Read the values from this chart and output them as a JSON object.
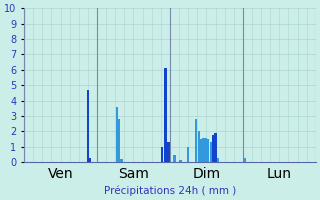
{
  "title": "Précipitations 24h ( mm )",
  "background_color": "#cceee8",
  "ylim": [
    0,
    10
  ],
  "yticks": [
    0,
    1,
    2,
    3,
    4,
    5,
    6,
    7,
    8,
    9,
    10
  ],
  "xlim": [
    0,
    96
  ],
  "day_labels": [
    "Ven",
    "Sam",
    "Dim",
    "Lun"
  ],
  "day_positions": [
    0,
    24,
    48,
    72
  ],
  "bars": [
    {
      "x": 21.0,
      "height": 4.7,
      "color": "#1144cc"
    },
    {
      "x": 21.8,
      "height": 0.25,
      "color": "#1144cc"
    },
    {
      "x": 30.5,
      "height": 3.6,
      "color": "#3399dd"
    },
    {
      "x": 31.3,
      "height": 2.8,
      "color": "#3399dd"
    },
    {
      "x": 32.1,
      "height": 0.2,
      "color": "#3399dd"
    },
    {
      "x": 45.5,
      "height": 1.0,
      "color": "#1144cc"
    },
    {
      "x": 46.5,
      "height": 6.1,
      "color": "#1144cc"
    },
    {
      "x": 47.5,
      "height": 1.3,
      "color": "#1144cc"
    },
    {
      "x": 49.5,
      "height": 0.5,
      "color": "#3399dd"
    },
    {
      "x": 51.5,
      "height": 0.15,
      "color": "#3399dd"
    },
    {
      "x": 54.0,
      "height": 1.0,
      "color": "#3399dd"
    },
    {
      "x": 56.5,
      "height": 2.8,
      "color": "#3399dd"
    },
    {
      "x": 57.5,
      "height": 2.0,
      "color": "#3399dd"
    },
    {
      "x": 58.2,
      "height": 1.5,
      "color": "#3399dd"
    },
    {
      "x": 59.0,
      "height": 1.6,
      "color": "#3399dd"
    },
    {
      "x": 59.8,
      "height": 1.6,
      "color": "#3399dd"
    },
    {
      "x": 60.6,
      "height": 1.5,
      "color": "#3399dd"
    },
    {
      "x": 61.4,
      "height": 1.3,
      "color": "#3399dd"
    },
    {
      "x": 62.2,
      "height": 1.8,
      "color": "#1144cc"
    },
    {
      "x": 63.0,
      "height": 1.9,
      "color": "#1144cc"
    },
    {
      "x": 63.8,
      "height": 0.3,
      "color": "#3399dd"
    },
    {
      "x": 72.8,
      "height": 0.3,
      "color": "#3399dd"
    }
  ],
  "grid_color": "#aad4cc",
  "axis_color": "#5566aa",
  "label_color": "#3333bb",
  "vline_color": "#7788aa",
  "bar_width": 0.75,
  "title_fontsize": 7.5,
  "tick_fontsize": 7
}
